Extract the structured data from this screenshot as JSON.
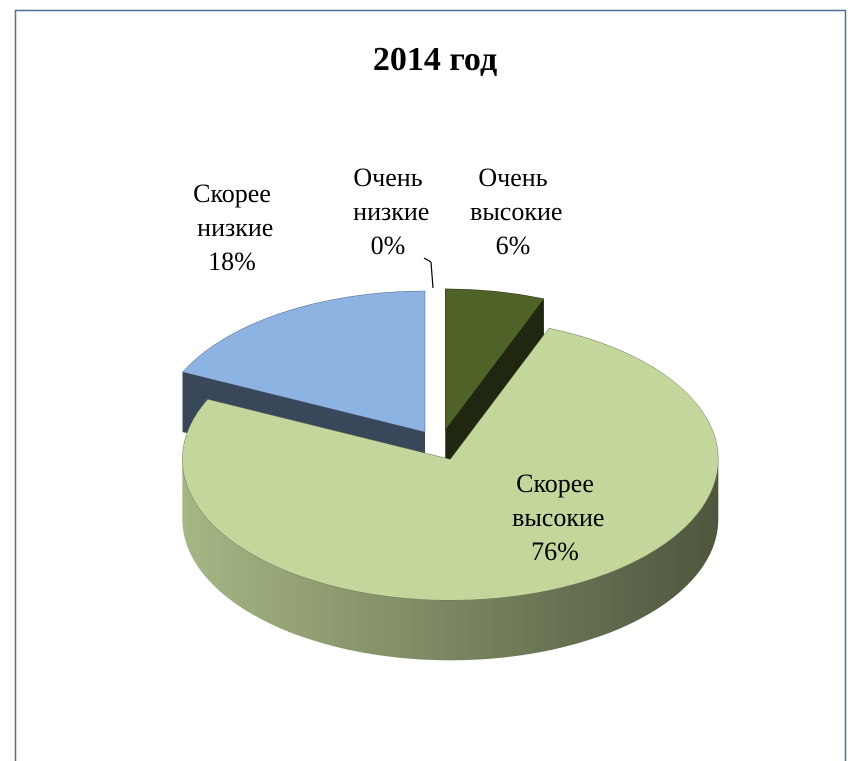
{
  "chart_data": {
    "type": "pie",
    "title": "2014 год",
    "categories": [
      "Очень высокие",
      "Скорее высокие",
      "Скорее низкие",
      "Очень низкие"
    ],
    "values": [
      6,
      76,
      18,
      0
    ],
    "value_labels": [
      "6%",
      "76%",
      "18%",
      "0%"
    ],
    "colors": [
      "#4f6228",
      "#c3d69b",
      "#8db3e2",
      "#1f497d"
    ]
  }
}
